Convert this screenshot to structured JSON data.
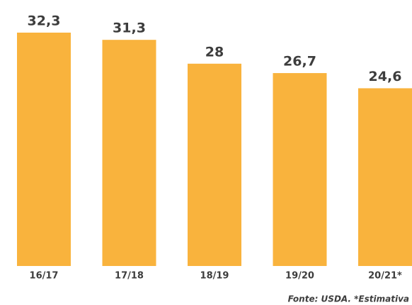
{
  "chart_data": {
    "type": "bar",
    "categories": [
      "16/17",
      "17/18",
      "18/19",
      "19/20",
      "20/21*"
    ],
    "values": [
      32.3,
      31.3,
      28,
      26.7,
      24.6
    ],
    "value_labels": [
      "32,3",
      "31,3",
      "28",
      "26,7",
      "24,6"
    ],
    "color": "#f9b33d",
    "source": "Fonte: USDA. *Estimativa"
  }
}
